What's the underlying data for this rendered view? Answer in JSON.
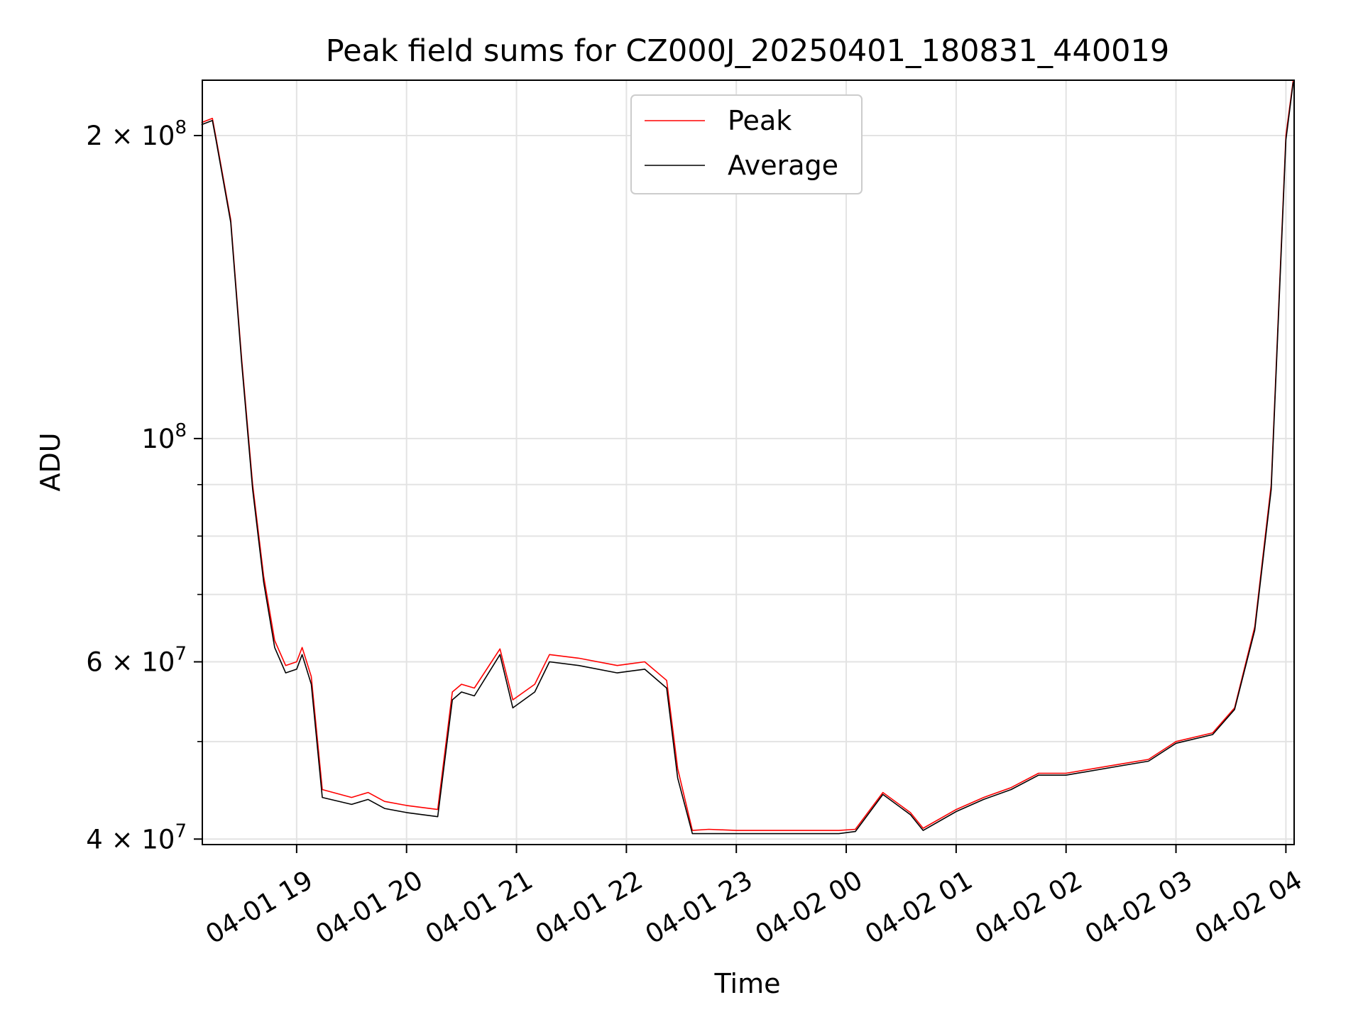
{
  "chart_data": {
    "type": "line",
    "title": "Peak field sums for CZ000J_20250401_180831_440019",
    "xlabel": "Time",
    "ylabel": "ADU",
    "y_scale": "log",
    "grid": true,
    "legend_position": "top-center",
    "xlim": [
      "2025-04-01 18:08:31",
      "2025-04-02 04:04:30"
    ],
    "ylim": [
      39500000,
      227000000
    ],
    "x_ticks": [
      {
        "t": "2025-04-01 19:00",
        "label": "04-01 19"
      },
      {
        "t": "2025-04-01 20:00",
        "label": "04-01 20"
      },
      {
        "t": "2025-04-01 21:00",
        "label": "04-01 21"
      },
      {
        "t": "2025-04-01 22:00",
        "label": "04-01 22"
      },
      {
        "t": "2025-04-01 23:00",
        "label": "04-01 23"
      },
      {
        "t": "2025-04-02 00:00",
        "label": "04-02 00"
      },
      {
        "t": "2025-04-02 01:00",
        "label": "04-02 01"
      },
      {
        "t": "2025-04-02 02:00",
        "label": "04-02 02"
      },
      {
        "t": "2025-04-02 03:00",
        "label": "04-02 03"
      },
      {
        "t": "2025-04-02 04:00",
        "label": "04-02 04"
      }
    ],
    "y_major_ticks": [
      {
        "value": 40000000,
        "label_base": "4 × 10",
        "label_exp": "7"
      },
      {
        "value": 60000000,
        "label_base": "6 × 10",
        "label_exp": "7"
      },
      {
        "value": 100000000,
        "label_base": "10",
        "label_exp": "8"
      },
      {
        "value": 200000000,
        "label_base": "2 × 10",
        "label_exp": "8"
      }
    ],
    "y_minor_ticks": [
      50000000,
      70000000,
      80000000,
      90000000
    ],
    "series": [
      {
        "name": "Peak",
        "color": "#ff0000",
        "x": [
          "2025-04-01 18:08",
          "2025-04-01 18:14",
          "2025-04-01 18:16",
          "2025-04-01 18:24",
          "2025-04-01 18:30",
          "2025-04-01 18:36",
          "2025-04-01 18:42",
          "2025-04-01 18:48",
          "2025-04-01 18:54",
          "2025-04-01 19:00",
          "2025-04-01 19:03",
          "2025-04-01 19:08",
          "2025-04-01 19:14",
          "2025-04-01 19:30",
          "2025-04-01 19:39",
          "2025-04-01 19:48",
          "2025-04-01 20:00",
          "2025-04-01 20:17",
          "2025-04-01 20:25",
          "2025-04-01 20:30",
          "2025-04-01 20:37",
          "2025-04-01 20:51",
          "2025-04-01 20:58",
          "2025-04-01 21:10",
          "2025-04-01 21:18",
          "2025-04-01 21:34",
          "2025-04-01 21:55",
          "2025-04-01 22:10",
          "2025-04-01 22:22",
          "2025-04-01 22:28",
          "2025-04-01 22:36",
          "2025-04-01 22:45",
          "2025-04-01 23:00",
          "2025-04-01 23:30",
          "2025-04-01 23:56",
          "2025-04-02 00:05",
          "2025-04-02 00:20",
          "2025-04-02 00:35",
          "2025-04-02 00:42",
          "2025-04-02 01:00",
          "2025-04-02 01:15",
          "2025-04-02 01:30",
          "2025-04-02 01:45",
          "2025-04-02 02:00",
          "2025-04-02 02:30",
          "2025-04-02 02:45",
          "2025-04-02 03:00",
          "2025-04-02 03:20",
          "2025-04-02 03:32",
          "2025-04-02 03:43",
          "2025-04-02 03:52",
          "2025-04-02 04:00",
          "2025-04-02 04:04"
        ],
        "values": [
          206000000,
          208000000,
          199000000,
          165000000,
          120000000,
          90000000,
          73000000,
          63000000,
          59500000,
          60000000,
          62000000,
          58000000,
          44800000,
          44000000,
          44500000,
          43600000,
          43200000,
          42800000,
          56000000,
          57000000,
          56500000,
          61800000,
          55000000,
          57000000,
          61000000,
          60500000,
          59500000,
          60000000,
          57500000,
          47000000,
          40800000,
          40900000,
          40800000,
          40800000,
          40800000,
          40900000,
          44500000,
          42500000,
          41000000,
          42800000,
          44000000,
          45000000,
          46500000,
          46500000,
          47500000,
          48000000,
          50000000,
          51000000,
          54000000,
          65000000,
          90000000,
          200000000,
          227000000
        ]
      },
      {
        "name": "Average",
        "color": "#000000",
        "x": [
          "2025-04-01 18:08",
          "2025-04-01 18:14",
          "2025-04-01 18:16",
          "2025-04-01 18:24",
          "2025-04-01 18:30",
          "2025-04-01 18:36",
          "2025-04-01 18:42",
          "2025-04-01 18:48",
          "2025-04-01 18:54",
          "2025-04-01 19:00",
          "2025-04-01 19:03",
          "2025-04-01 19:08",
          "2025-04-01 19:14",
          "2025-04-01 19:30",
          "2025-04-01 19:39",
          "2025-04-01 19:48",
          "2025-04-01 20:00",
          "2025-04-01 20:17",
          "2025-04-01 20:25",
          "2025-04-01 20:30",
          "2025-04-01 20:37",
          "2025-04-01 20:51",
          "2025-04-01 20:58",
          "2025-04-01 21:10",
          "2025-04-01 21:18",
          "2025-04-01 21:34",
          "2025-04-01 21:55",
          "2025-04-01 22:10",
          "2025-04-01 22:22",
          "2025-04-01 22:28",
          "2025-04-01 22:36",
          "2025-04-01 22:45",
          "2025-04-01 23:00",
          "2025-04-01 23:30",
          "2025-04-01 23:56",
          "2025-04-02 00:05",
          "2025-04-02 00:20",
          "2025-04-02 00:35",
          "2025-04-02 00:42",
          "2025-04-02 01:00",
          "2025-04-02 01:15",
          "2025-04-02 01:30",
          "2025-04-02 01:45",
          "2025-04-02 02:00",
          "2025-04-02 02:30",
          "2025-04-02 02:45",
          "2025-04-02 03:00",
          "2025-04-02 03:20",
          "2025-04-02 03:32",
          "2025-04-02 03:43",
          "2025-04-02 03:52",
          "2025-04-02 04:00",
          "2025-04-02 04:04"
        ],
        "values": [
          205000000,
          207000000,
          198000000,
          164000000,
          119000000,
          89000000,
          72000000,
          62000000,
          58500000,
          59000000,
          61000000,
          57000000,
          44000000,
          43300000,
          43800000,
          42900000,
          42500000,
          42100000,
          55000000,
          56000000,
          55500000,
          61000000,
          54000000,
          56000000,
          60000000,
          59500000,
          58500000,
          59000000,
          56500000,
          46000000,
          40500000,
          40500000,
          40500000,
          40500000,
          40500000,
          40700000,
          44300000,
          42300000,
          40800000,
          42600000,
          43800000,
          44800000,
          46300000,
          46300000,
          47300000,
          47800000,
          49800000,
          50800000,
          53800000,
          64500000,
          89000000,
          198000000,
          226000000
        ]
      }
    ]
  }
}
